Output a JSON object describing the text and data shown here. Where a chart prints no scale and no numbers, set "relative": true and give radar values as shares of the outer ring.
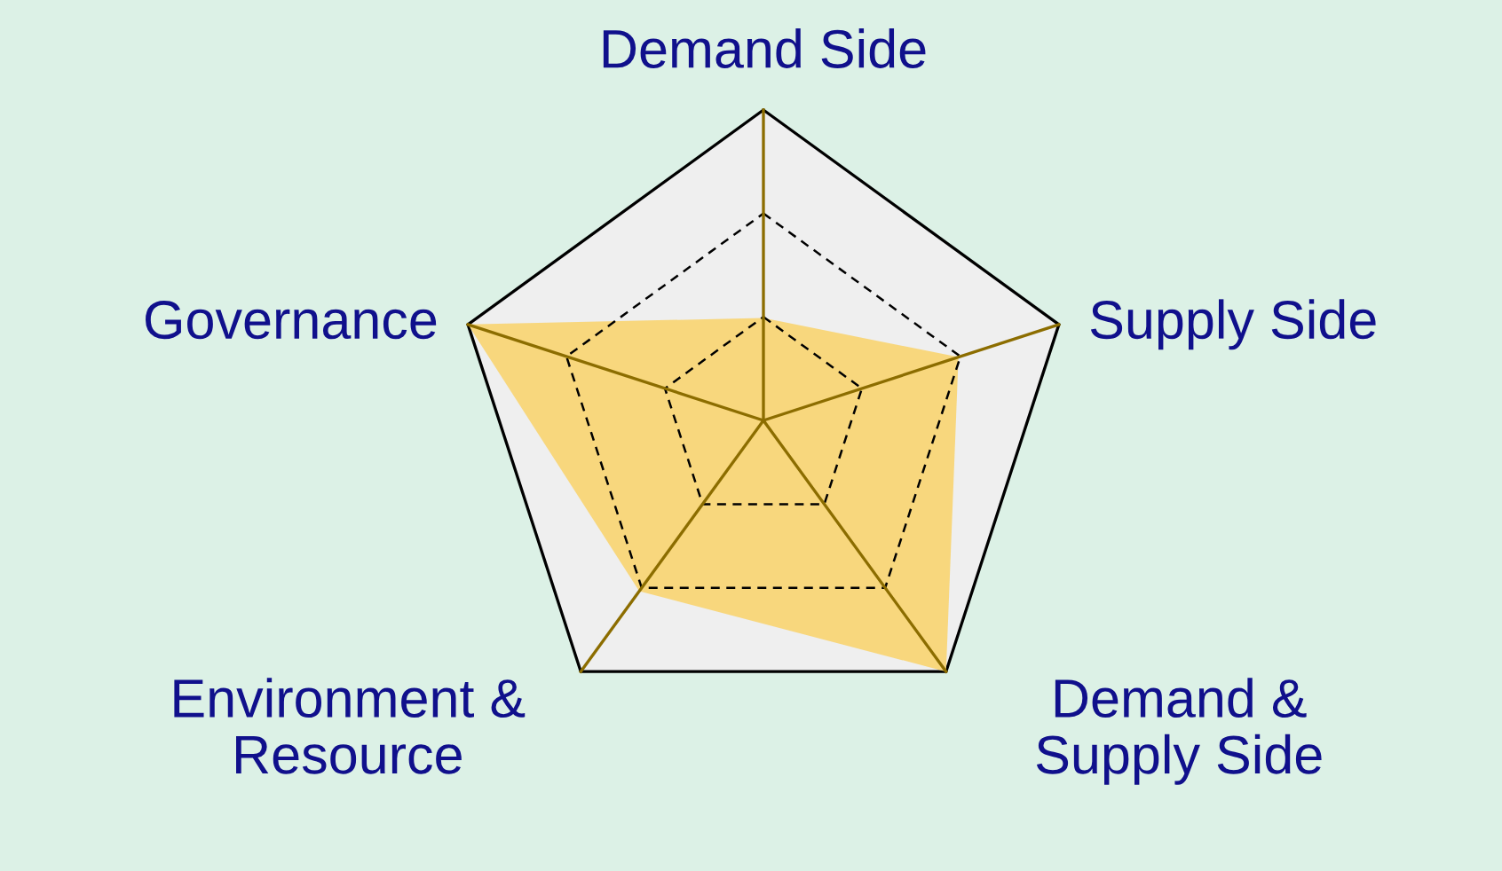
{
  "chart_data": {
    "type": "radar",
    "relative": true,
    "grid": true,
    "categories": [
      "Demand Side",
      "Supply Side",
      "Demand &\nSupply Side",
      "Environment &\nResource",
      "Governance"
    ],
    "series": [
      {
        "color": "#f8d470",
        "values": [
          0.33,
          0.66,
          1.0,
          0.68,
          1.0
        ]
      }
    ]
  }
}
